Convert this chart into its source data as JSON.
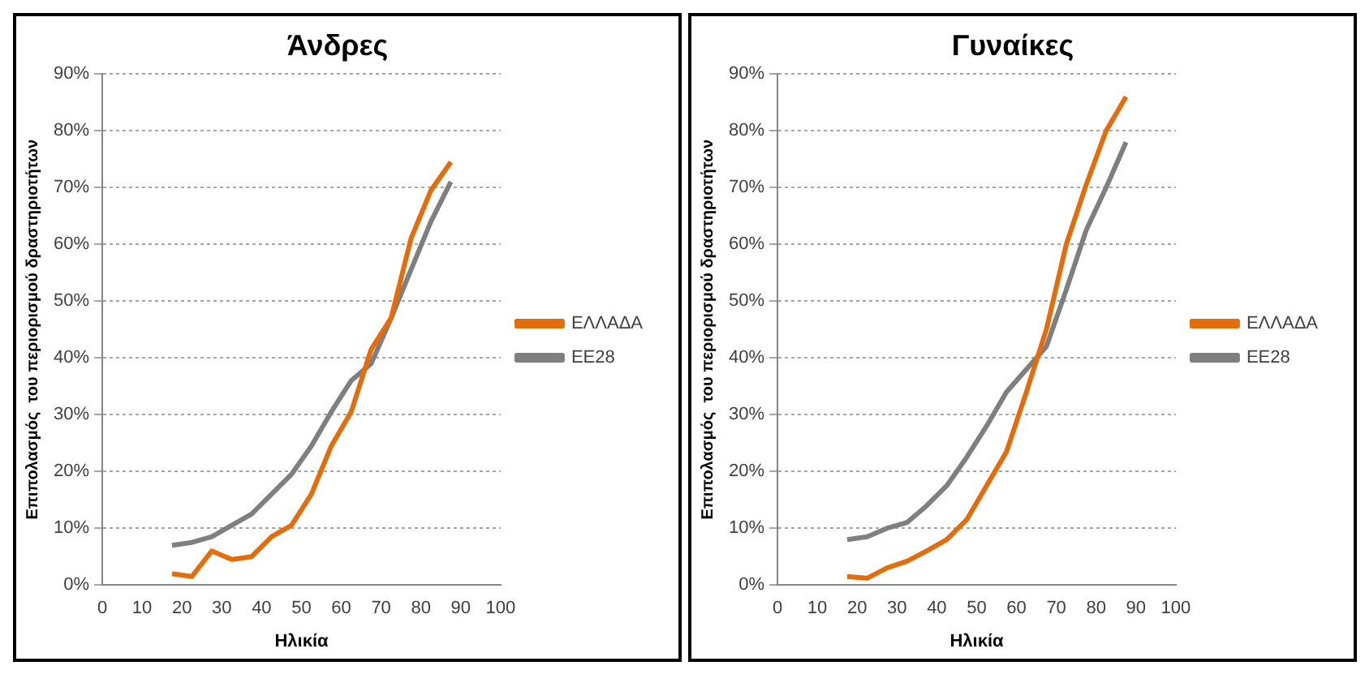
{
  "chart_data": [
    {
      "type": "line",
      "title": "Άνδρες",
      "xlabel": "Ηλικία",
      "ylabel": "Επιπολασμός  του περιορισμού δραστηριοτήτων",
      "xlim": [
        0,
        100
      ],
      "xticks": [
        0,
        10,
        20,
        30,
        40,
        50,
        60,
        70,
        80,
        90,
        100
      ],
      "ylim": [
        0,
        90
      ],
      "yticks": [
        {
          "value": 0,
          "label": "0%"
        },
        {
          "value": 10,
          "label": "10%"
        },
        {
          "value": 20,
          "label": "20%"
        },
        {
          "value": 30,
          "label": "30%"
        },
        {
          "value": 40,
          "label": "40%"
        },
        {
          "value": 50,
          "label": "50%"
        },
        {
          "value": 60,
          "label": "60%"
        },
        {
          "value": 70,
          "label": "70%"
        },
        {
          "value": 80,
          "label": "80%"
        },
        {
          "value": 90,
          "label": "90%"
        }
      ],
      "grid": "y",
      "legend": "right",
      "marker": "none",
      "line_style": "solid",
      "x": [
        17.5,
        22.5,
        27.5,
        32.5,
        37.5,
        42.5,
        47.5,
        52.5,
        57.5,
        62.5,
        67.5,
        72.5,
        77.5,
        82.5,
        87.5
      ],
      "series": [
        {
          "name": "ΕΛΛΑΔΑ",
          "color": "#e46c0a",
          "values": [
            2,
            1.5,
            6,
            4.5,
            5,
            8.5,
            10.5,
            16,
            24.5,
            30.5,
            41.5,
            47,
            61,
            69.5,
            74.5
          ]
        },
        {
          "name": "ΕΕ28",
          "color": "#7f7f7f",
          "values": [
            7,
            7.5,
            8.5,
            10.5,
            12.5,
            16,
            19.5,
            24.5,
            30.5,
            36,
            39,
            47,
            55.5,
            64,
            71
          ]
        }
      ]
    },
    {
      "type": "line",
      "title": "Γυναίκες",
      "xlabel": "Ηλικία",
      "ylabel": "Επιπολασμός  του περιορισμού δραστηριοτήτων",
      "xlim": [
        0,
        100
      ],
      "xticks": [
        0,
        10,
        20,
        30,
        40,
        50,
        60,
        70,
        80,
        90,
        100
      ],
      "ylim": [
        0,
        90
      ],
      "yticks": [
        {
          "value": 0,
          "label": "0%"
        },
        {
          "value": 10,
          "label": "10%"
        },
        {
          "value": 20,
          "label": "20%"
        },
        {
          "value": 30,
          "label": "30%"
        },
        {
          "value": 40,
          "label": "40%"
        },
        {
          "value": 50,
          "label": "50%"
        },
        {
          "value": 60,
          "label": "60%"
        },
        {
          "value": 70,
          "label": "70%"
        },
        {
          "value": 80,
          "label": "80%"
        },
        {
          "value": 90,
          "label": "90%"
        }
      ],
      "grid": "y",
      "legend": "right",
      "marker": "none",
      "line_style": "solid",
      "x": [
        17.5,
        22.5,
        27.5,
        32.5,
        37.5,
        42.5,
        47.5,
        52.5,
        57.5,
        62.5,
        67.5,
        72.5,
        77.5,
        82.5,
        87.5
      ],
      "series": [
        {
          "name": "ΕΛΛΑΔΑ",
          "color": "#e46c0a",
          "values": [
            1.5,
            1.2,
            3,
            4.2,
            6,
            8,
            11.5,
            17.5,
            23.5,
            34,
            45,
            60,
            70.5,
            80,
            86
          ]
        },
        {
          "name": "ΕΕ28",
          "color": "#7f7f7f",
          "values": [
            8,
            8.5,
            10,
            11,
            14,
            17.5,
            22.5,
            28,
            34,
            38,
            42,
            52,
            62.5,
            70,
            78
          ]
        }
      ]
    }
  ]
}
